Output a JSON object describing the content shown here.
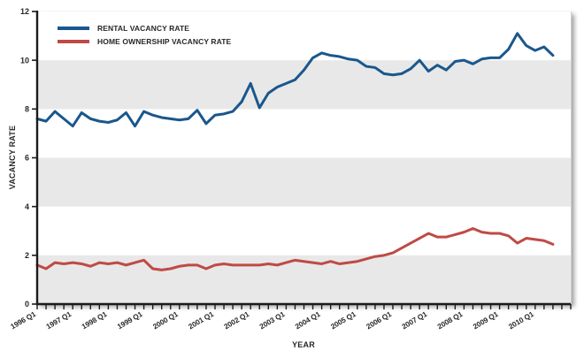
{
  "chart_data": {
    "type": "line",
    "title": "",
    "xlabel": "YEAR",
    "ylabel": "VACANCY RATE",
    "ylim": [
      0,
      12
    ],
    "y_ticks": [
      0,
      2,
      4,
      6,
      8,
      10,
      12
    ],
    "grid": false,
    "legend_position": "top-left",
    "band_color": "#e8e8e8",
    "band_ranges": [
      [
        0,
        2
      ],
      [
        4,
        6
      ],
      [
        8,
        10
      ]
    ],
    "axis_color": "#1c1a1a",
    "text_color": "#2b2627",
    "x_label_every_n_ticks": 4,
    "x": [
      "1996 Q1",
      "1996 Q2",
      "1996 Q3",
      "1996 Q4",
      "1997 Q1",
      "1997 Q2",
      "1997 Q3",
      "1997 Q4",
      "1998 Q1",
      "1998 Q2",
      "1998 Q3",
      "1998 Q4",
      "1999 Q1",
      "1999 Q2",
      "1999 Q3",
      "1999 Q4",
      "2000 Q1",
      "2000 Q2",
      "2000 Q3",
      "2000 Q4",
      "2001 Q1",
      "2001 Q2",
      "2001 Q3",
      "2001 Q4",
      "2002 Q1",
      "2002 Q2",
      "2002 Q3",
      "2002 Q4",
      "2003 Q1",
      "2003 Q2",
      "2003 Q3",
      "2003 Q4",
      "2004 Q1",
      "2004 Q2",
      "2004 Q3",
      "2004 Q4",
      "2005 Q1",
      "2005 Q2",
      "2005 Q3",
      "2005 Q4",
      "2006 Q1",
      "2006 Q2",
      "2006 Q3",
      "2006 Q4",
      "2007 Q1",
      "2007 Q2",
      "2007 Q3",
      "2007 Q4",
      "2008 Q1",
      "2008 Q2",
      "2008 Q3",
      "2008 Q4",
      "2009 Q1",
      "2009 Q2",
      "2009 Q3",
      "2009 Q4",
      "2010 Q1",
      "2010 Q2",
      "2010 Q3"
    ],
    "x_axis_visible_year_labels": [
      "1996 Q1",
      "1997 Q1",
      "1998 Q1",
      "1999 Q1",
      "2000 Q1",
      "2001 Q1",
      "2002 Q1",
      "2003 Q1",
      "2004 Q1",
      "2005 Q1",
      "2006 Q1",
      "2007 Q1",
      "2008 Q1",
      "2009 Q1",
      "2010 Q1"
    ],
    "series": [
      {
        "name": "RENTAL VACANCY RATE",
        "color": "#1a578c",
        "values": [
          7.6,
          7.5,
          7.9,
          7.6,
          7.3,
          7.85,
          7.6,
          7.5,
          7.45,
          7.55,
          7.85,
          7.3,
          7.9,
          7.75,
          7.65,
          7.6,
          7.55,
          7.6,
          7.95,
          7.4,
          7.75,
          7.8,
          7.9,
          8.3,
          9.05,
          8.05,
          8.65,
          8.9,
          9.05,
          9.2,
          9.6,
          10.1,
          10.3,
          10.2,
          10.15,
          10.05,
          10.0,
          9.75,
          9.7,
          9.45,
          9.4,
          9.45,
          9.65,
          10.0,
          9.55,
          9.8,
          9.6,
          9.95,
          10.0,
          9.85,
          10.05,
          10.1,
          10.1,
          10.45,
          11.1,
          10.6,
          10.4,
          10.55,
          10.2
        ]
      },
      {
        "name": "HOME OWNERSHIP VACANCY RATE",
        "color": "#bf4a45",
        "values": [
          1.6,
          1.45,
          1.7,
          1.65,
          1.7,
          1.65,
          1.55,
          1.7,
          1.65,
          1.7,
          1.6,
          1.7,
          1.8,
          1.45,
          1.4,
          1.45,
          1.55,
          1.6,
          1.6,
          1.45,
          1.6,
          1.65,
          1.6,
          1.6,
          1.6,
          1.6,
          1.65,
          1.6,
          1.7,
          1.8,
          1.75,
          1.7,
          1.65,
          1.75,
          1.65,
          1.7,
          1.75,
          1.85,
          1.95,
          2.0,
          2.1,
          2.3,
          2.5,
          2.7,
          2.9,
          2.75,
          2.75,
          2.85,
          2.95,
          3.1,
          2.95,
          2.9,
          2.9,
          2.8,
          2.5,
          2.7,
          2.65,
          2.6,
          2.45
        ]
      }
    ]
  }
}
